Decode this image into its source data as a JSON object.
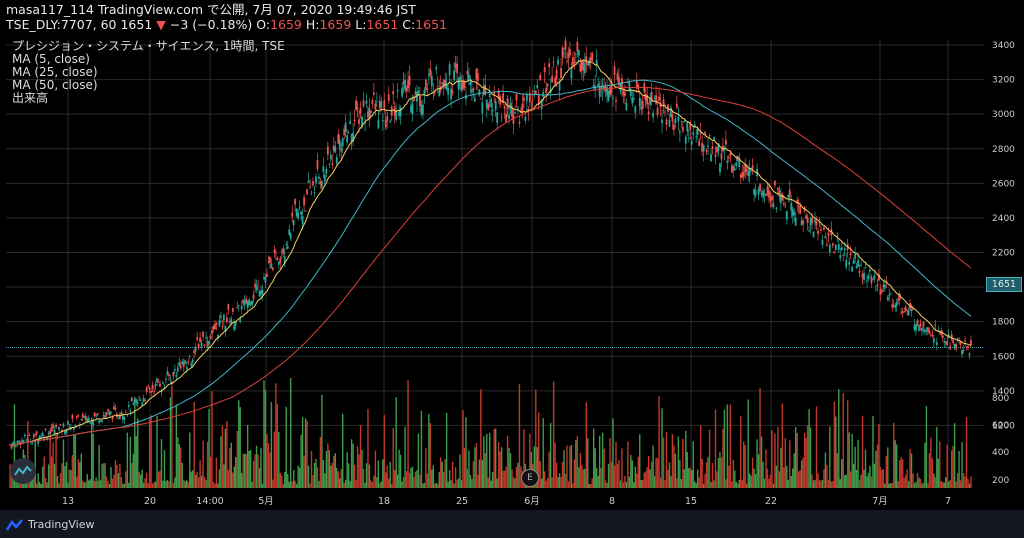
{
  "header": {
    "line1": "masa117_114 TradingView.com で公開, 7月 07, 2020 19:49:46 JST",
    "symbol": "TSE_DLY:7707, 60",
    "last": "1651",
    "change_arrow": "▼",
    "change": "−3 (−0.18%)",
    "o_label": "O:",
    "o_value": "1659",
    "h_label": "H:",
    "h_value": "1659",
    "l_label": "L:",
    "l_value": "1651",
    "c_label": "C:",
    "c_value": "1651"
  },
  "legend": {
    "title": "プレシジョン・システム・サイエンス, 1時間, TSE",
    "ma5": "MA (5, close)",
    "ma25": "MA (25, close)",
    "ma50": "MA (50, close)",
    "volume": "出来高"
  },
  "footer": {
    "brand": "TradingView"
  },
  "colors": {
    "up": "#26a69a",
    "down": "#ef5350",
    "ma5": "#f5d061",
    "ma25": "#3fb6c6",
    "ma50": "#d9403a",
    "vol_up": "#3f9b4c",
    "vol_down": "#c0392b",
    "grid": "#2a2a2a",
    "price_line": "#46b3c4"
  },
  "event_marker": "E",
  "chart_data": {
    "type": "candlestick",
    "title": "プレシジョン・システム・サイエンス, 1時間, TSE",
    "ylim": [
      1000,
      3400
    ],
    "y_ticks": [
      1200,
      1400,
      1600,
      1800,
      2000,
      2200,
      2400,
      2600,
      2800,
      3000,
      3200,
      3400
    ],
    "volume_ticks": [
      200,
      400,
      600,
      800
    ],
    "x_ticks": [
      "13",
      "20",
      "14:00",
      "5月",
      "18",
      "25",
      "6月",
      "8",
      "15",
      "22",
      "7月",
      "7"
    ],
    "last_price": 1651,
    "price_series": [
      1090,
      1100,
      1110,
      1120,
      1125,
      1130,
      1140,
      1150,
      1160,
      1170,
      1175,
      1180,
      1190,
      1200,
      1215,
      1225,
      1230,
      1240,
      1245,
      1250,
      1255,
      1260,
      1265,
      1265,
      1270,
      1280,
      1290,
      1310,
      1330,
      1350,
      1370,
      1400,
      1420,
      1450,
      1430,
      1480,
      1470,
      1520,
      1560,
      1540,
      1580,
      1620,
      1680,
      1700,
      1690,
      1730,
      1760,
      1790,
      1810,
      1830,
      1820,
      1850,
      1880,
      1920,
      1960,
      1990,
      2020,
      2060,
      2110,
      2150,
      2190,
      2230,
      2280,
      2350,
      2420,
      2440,
      2490,
      2560,
      2600,
      2640,
      2660,
      2700,
      2760,
      2800,
      2840,
      2880,
      2920,
      2960,
      3000,
      3020,
      3040,
      3060,
      3030,
      3000,
      2980,
      3010,
      3050,
      3090,
      3130,
      3150,
      3120,
      3100,
      3110,
      3140,
      3180,
      3200,
      3210,
      3220,
      3210,
      3200,
      3190,
      3180,
      3170,
      3160,
      3150,
      3140,
      3120,
      3100,
      3080,
      3060,
      3040,
      3030,
      3020,
      3010,
      3000,
      3050,
      3070,
      3080,
      3120,
      3160,
      3180,
      3200,
      3230,
      3260,
      3300,
      3320,
      3340,
      3330,
      3310,
      3290,
      3260,
      3240,
      3220,
      3200,
      3190,
      3170,
      3150,
      3140,
      3120,
      3110,
      3100,
      3090,
      3080,
      3070,
      3060,
      3040,
      3020,
      3010,
      2990,
      2970,
      2950,
      2930,
      2910,
      2890,
      2870,
      2850,
      2830,
      2810,
      2800,
      2780,
      2760,
      2740,
      2720,
      2700,
      2680,
      2660,
      2640,
      2620,
      2600,
      2580,
      2560,
      2540,
      2520,
      2500,
      2480,
      2460,
      2440,
      2420,
      2400,
      2380,
      2360,
      2340,
      2310,
      2290,
      2260,
      2240,
      2220,
      2200,
      2180,
      2150,
      2120,
      2100,
      2070,
      2050,
      2020,
      2000,
      1980,
      1950,
      1920,
      1900,
      1880,
      1860,
      1840,
      1820,
      1800,
      1780,
      1760,
      1740,
      1720,
      1700,
      1690,
      1680,
      1670,
      1660,
      1655,
      1651
    ]
  }
}
